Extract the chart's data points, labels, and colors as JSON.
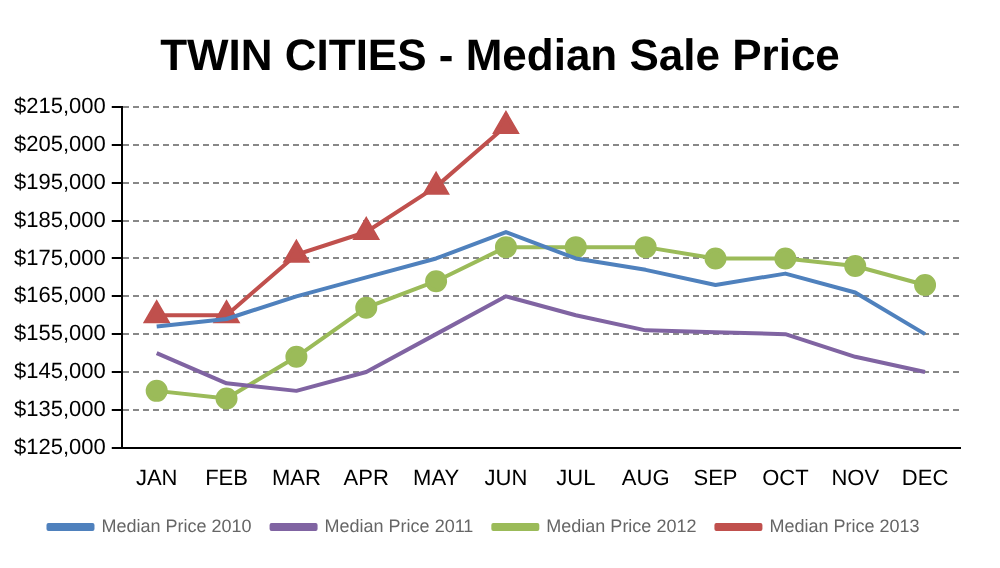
{
  "chart_data": {
    "type": "line",
    "title": "TWIN CITIES - Median Sale Price",
    "categories": [
      "JAN",
      "FEB",
      "MAR",
      "APR",
      "MAY",
      "JUN",
      "JUL",
      "AUG",
      "SEP",
      "OCT",
      "NOV",
      "DEC"
    ],
    "series": [
      {
        "name": "Median Price 2010",
        "color": "#4f81bd",
        "marker": "none",
        "values": [
          157000,
          159000,
          165000,
          170000,
          175000,
          182000,
          175000,
          172000,
          168000,
          171000,
          166000,
          155000
        ]
      },
      {
        "name": "Median Price 2011",
        "color": "#8064a2",
        "marker": "none",
        "values": [
          150000,
          142000,
          140000,
          145000,
          155000,
          165000,
          160000,
          156000,
          155500,
          155000,
          149000,
          145000
        ]
      },
      {
        "name": "Median Price 2012",
        "color": "#9bbb59",
        "marker": "circle",
        "values": [
          140000,
          138000,
          149000,
          162000,
          169000,
          178000,
          178000,
          178000,
          175000,
          175000,
          173000,
          168000
        ]
      },
      {
        "name": "Median Price 2013",
        "color": "#c0504d",
        "marker": "triangle",
        "values": [
          160000,
          160000,
          176000,
          182000,
          194000,
          210000,
          null,
          null,
          null,
          null,
          null,
          null
        ]
      }
    ],
    "ylim": [
      125000,
      215000
    ],
    "yticks": [
      {
        "value": 125000,
        "label": "$125,000"
      },
      {
        "value": 135000,
        "label": "$135,000"
      },
      {
        "value": 145000,
        "label": "$145,000"
      },
      {
        "value": 155000,
        "label": "$155,000"
      },
      {
        "value": 165000,
        "label": "$165,000"
      },
      {
        "value": 175000,
        "label": "$175,000"
      },
      {
        "value": 185000,
        "label": "$185,000"
      },
      {
        "value": 195000,
        "label": "$195,000"
      },
      {
        "value": 205000,
        "label": "$205,000"
      },
      {
        "value": 215000,
        "label": "$215,000"
      }
    ],
    "grid": "y",
    "legend": "bottom"
  }
}
